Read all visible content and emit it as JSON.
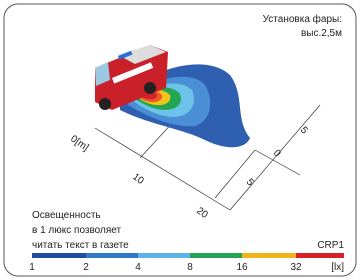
{
  "header": {
    "line1": "Установка фары:",
    "line2": "выс.2,5м"
  },
  "axes": {
    "distance": [
      "0[m]",
      "10",
      "20"
    ],
    "lateral": [
      "5",
      "0",
      "5"
    ]
  },
  "caption": [
    "Освещенность",
    "в 1 люкс позволяет",
    "читать текст в газете"
  ],
  "model": "CRP1",
  "scale": {
    "labels": [
      "1",
      "2",
      "4",
      "8",
      "16",
      "32",
      "[lx]"
    ]
  }
}
